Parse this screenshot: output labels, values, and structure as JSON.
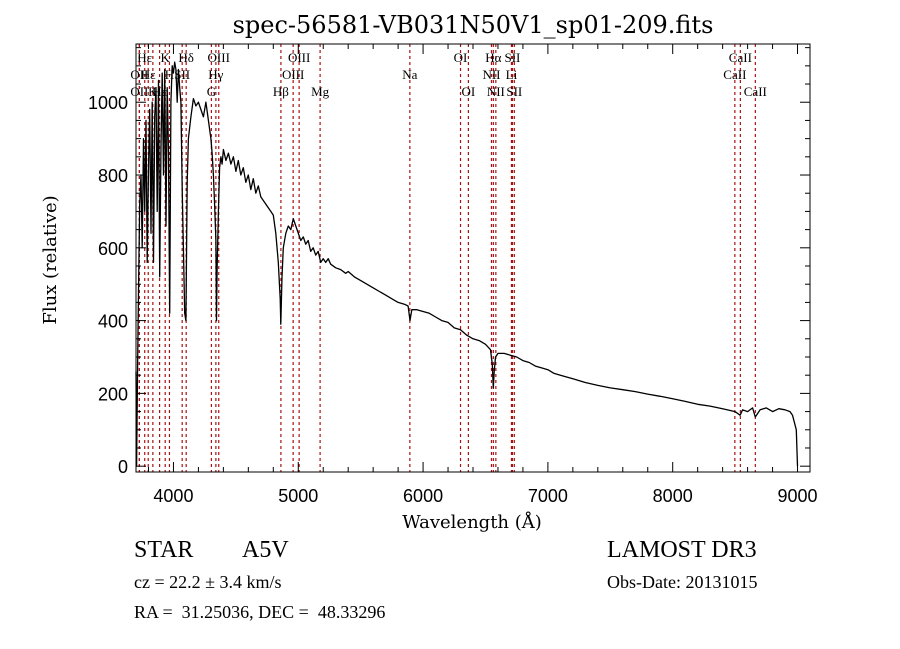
{
  "chart_data": {
    "type": "line",
    "title": "spec-56581-VB031N50V1_sp01-209.fits",
    "xlabel": "Wavelength (Å)",
    "ylabel": "Flux (relative)",
    "xlim": [
      3700,
      9100
    ],
    "ylim": [
      -16,
      1160
    ],
    "xticks": [
      4000,
      5000,
      6000,
      7000,
      8000,
      9000
    ],
    "yticks": [
      0,
      200,
      400,
      600,
      800,
      1000
    ],
    "x_minor_step": 200,
    "y_minor_step": 50,
    "grid": false,
    "line_color": "#000000",
    "marker_line_color": "#aa1111",
    "spectrum": [
      [
        3700,
        260
      ],
      [
        3705,
        0
      ],
      [
        3712,
        250
      ],
      [
        3720,
        480
      ],
      [
        3730,
        720
      ],
      [
        3740,
        800
      ],
      [
        3750,
        600
      ],
      [
        3760,
        900
      ],
      [
        3770,
        700
      ],
      [
        3780,
        950
      ],
      [
        3790,
        560
      ],
      [
        3800,
        820
      ],
      [
        3810,
        980
      ],
      [
        3820,
        640
      ],
      [
        3830,
        1000
      ],
      [
        3840,
        560
      ],
      [
        3850,
        960
      ],
      [
        3860,
        1040
      ],
      [
        3870,
        700
      ],
      [
        3880,
        1060
      ],
      [
        3890,
        520
      ],
      [
        3900,
        880
      ],
      [
        3910,
        1080
      ],
      [
        3920,
        800
      ],
      [
        3930,
        1090
      ],
      [
        3940,
        660
      ],
      [
        3950,
        1040
      ],
      [
        3960,
        860
      ],
      [
        3970,
        420
      ],
      [
        3980,
        1000
      ],
      [
        3990,
        1100
      ],
      [
        4000,
        1080
      ],
      [
        4010,
        1110
      ],
      [
        4020,
        1090
      ],
      [
        4030,
        1000
      ],
      [
        4040,
        1090
      ],
      [
        4050,
        1040
      ],
      [
        4060,
        1000
      ],
      [
        4070,
        760
      ],
      [
        4080,
        600
      ],
      [
        4090,
        420
      ],
      [
        4100,
        400
      ],
      [
        4110,
        780
      ],
      [
        4120,
        900
      ],
      [
        4140,
        960
      ],
      [
        4160,
        1010
      ],
      [
        4180,
        990
      ],
      [
        4200,
        1000
      ],
      [
        4220,
        980
      ],
      [
        4240,
        960
      ],
      [
        4260,
        1000
      ],
      [
        4280,
        950
      ],
      [
        4300,
        900
      ],
      [
        4310,
        860
      ],
      [
        4320,
        800
      ],
      [
        4330,
        720
      ],
      [
        4340,
        620
      ],
      [
        4345,
        400
      ],
      [
        4350,
        540
      ],
      [
        4360,
        700
      ],
      [
        4370,
        820
      ],
      [
        4380,
        850
      ],
      [
        4390,
        830
      ],
      [
        4400,
        870
      ],
      [
        4420,
        840
      ],
      [
        4440,
        860
      ],
      [
        4460,
        830
      ],
      [
        4480,
        850
      ],
      [
        4500,
        810
      ],
      [
        4520,
        840
      ],
      [
        4540,
        800
      ],
      [
        4560,
        820
      ],
      [
        4580,
        780
      ],
      [
        4600,
        800
      ],
      [
        4620,
        760
      ],
      [
        4640,
        790
      ],
      [
        4660,
        750
      ],
      [
        4680,
        770
      ],
      [
        4700,
        740
      ],
      [
        4720,
        730
      ],
      [
        4740,
        720
      ],
      [
        4760,
        710
      ],
      [
        4780,
        700
      ],
      [
        4800,
        690
      ],
      [
        4820,
        640
      ],
      [
        4840,
        560
      ],
      [
        4855,
        460
      ],
      [
        4860,
        390
      ],
      [
        4870,
        520
      ],
      [
        4880,
        600
      ],
      [
        4900,
        640
      ],
      [
        4920,
        660
      ],
      [
        4940,
        650
      ],
      [
        4960,
        680
      ],
      [
        4980,
        660
      ],
      [
        5000,
        640
      ],
      [
        5020,
        620
      ],
      [
        5040,
        630
      ],
      [
        5060,
        610
      ],
      [
        5080,
        620
      ],
      [
        5100,
        590
      ],
      [
        5120,
        600
      ],
      [
        5140,
        580
      ],
      [
        5160,
        590
      ],
      [
        5180,
        560
      ],
      [
        5200,
        570
      ],
      [
        5220,
        560
      ],
      [
        5240,
        570
      ],
      [
        5260,
        555
      ],
      [
        5300,
        545
      ],
      [
        5340,
        540
      ],
      [
        5380,
        530
      ],
      [
        5400,
        535
      ],
      [
        5450,
        520
      ],
      [
        5500,
        510
      ],
      [
        5550,
        500
      ],
      [
        5600,
        490
      ],
      [
        5650,
        480
      ],
      [
        5700,
        470
      ],
      [
        5750,
        460
      ],
      [
        5800,
        450
      ],
      [
        5850,
        445
      ],
      [
        5880,
        440
      ],
      [
        5895,
        400
      ],
      [
        5910,
        430
      ],
      [
        5950,
        430
      ],
      [
        6000,
        425
      ],
      [
        6050,
        420
      ],
      [
        6100,
        410
      ],
      [
        6150,
        400
      ],
      [
        6200,
        395
      ],
      [
        6250,
        380
      ],
      [
        6300,
        375
      ],
      [
        6350,
        360
      ],
      [
        6400,
        350
      ],
      [
        6450,
        345
      ],
      [
        6500,
        335
      ],
      [
        6540,
        320
      ],
      [
        6555,
        280
      ],
      [
        6563,
        215
      ],
      [
        6570,
        260
      ],
      [
        6580,
        300
      ],
      [
        6600,
        310
      ],
      [
        6650,
        310
      ],
      [
        6700,
        305
      ],
      [
        6750,
        300
      ],
      [
        6800,
        290
      ],
      [
        6850,
        285
      ],
      [
        6900,
        275
      ],
      [
        6950,
        270
      ],
      [
        7000,
        265
      ],
      [
        7050,
        255
      ],
      [
        7100,
        250
      ],
      [
        7150,
        245
      ],
      [
        7200,
        240
      ],
      [
        7300,
        230
      ],
      [
        7400,
        222
      ],
      [
        7500,
        215
      ],
      [
        7600,
        210
      ],
      [
        7700,
        205
      ],
      [
        7800,
        198
      ],
      [
        7900,
        192
      ],
      [
        8000,
        185
      ],
      [
        8100,
        178
      ],
      [
        8200,
        170
      ],
      [
        8300,
        165
      ],
      [
        8400,
        158
      ],
      [
        8500,
        150
      ],
      [
        8540,
        140
      ],
      [
        8560,
        155
      ],
      [
        8600,
        150
      ],
      [
        8640,
        160
      ],
      [
        8662,
        135
      ],
      [
        8700,
        155
      ],
      [
        8750,
        160
      ],
      [
        8800,
        150
      ],
      [
        8850,
        158
      ],
      [
        8900,
        155
      ],
      [
        8940,
        150
      ],
      [
        8960,
        140
      ],
      [
        8990,
        100
      ],
      [
        9000,
        0
      ]
    ],
    "line_markers": [
      {
        "wavelength": 3727,
        "label": "OII",
        "row": 2
      },
      {
        "wavelength": 3727,
        "label": "OII",
        "row": 3
      },
      {
        "wavelength": 3770,
        "label": "Hε",
        "row": 1
      },
      {
        "wavelength": 3798,
        "label": "Hε",
        "row": 2
      },
      {
        "wavelength": 3835,
        "label": "K",
        "row": 3
      },
      {
        "wavelength": 3889,
        "label": "Hε",
        "row": 3
      },
      {
        "wavelength": 3934,
        "label": "K",
        "row": 1
      },
      {
        "wavelength": 3968,
        "label": "H",
        "row": 2
      },
      {
        "wavelength": 4070,
        "label": "SII",
        "row": 2
      },
      {
        "wavelength": 4102,
        "label": "Hδ",
        "row": 1
      },
      {
        "wavelength": 4304,
        "label": "G",
        "row": 3
      },
      {
        "wavelength": 4340,
        "label": "Hγ",
        "row": 2
      },
      {
        "wavelength": 4363,
        "label": "OIII",
        "row": 1
      },
      {
        "wavelength": 4861,
        "label": "Hβ",
        "row": 3
      },
      {
        "wavelength": 4959,
        "label": "OIII",
        "row": 2
      },
      {
        "wavelength": 5007,
        "label": "OIII",
        "row": 1
      },
      {
        "wavelength": 5175,
        "label": "Mg",
        "row": 3
      },
      {
        "wavelength": 5894,
        "label": "Na",
        "row": 2
      },
      {
        "wavelength": 6300,
        "label": "OI",
        "row": 1
      },
      {
        "wavelength": 6363,
        "label": "OI",
        "row": 3
      },
      {
        "wavelength": 6548,
        "label": "NII",
        "row": 2
      },
      {
        "wavelength": 6563,
        "label": "Hα",
        "row": 1
      },
      {
        "wavelength": 6583,
        "label": "NII",
        "row": 3
      },
      {
        "wavelength": 6708,
        "label": "Li",
        "row": 2
      },
      {
        "wavelength": 6716,
        "label": "SII",
        "row": 1
      },
      {
        "wavelength": 6731,
        "label": "SII",
        "row": 3
      },
      {
        "wavelength": 8498,
        "label": "CaII",
        "row": 2
      },
      {
        "wavelength": 8542,
        "label": "CaII",
        "row": 1
      },
      {
        "wavelength": 8662,
        "label": "CaII",
        "row": 3
      }
    ]
  },
  "info": {
    "object_class": "STAR",
    "subclass": "A5V",
    "survey": "LAMOST DR3",
    "redshift_line": "cz = 22.2 ± 3.4 km/s",
    "obs_date": "Obs-Date: 20131015",
    "coords": "RA =  31.25036, DEC =  48.33296"
  }
}
